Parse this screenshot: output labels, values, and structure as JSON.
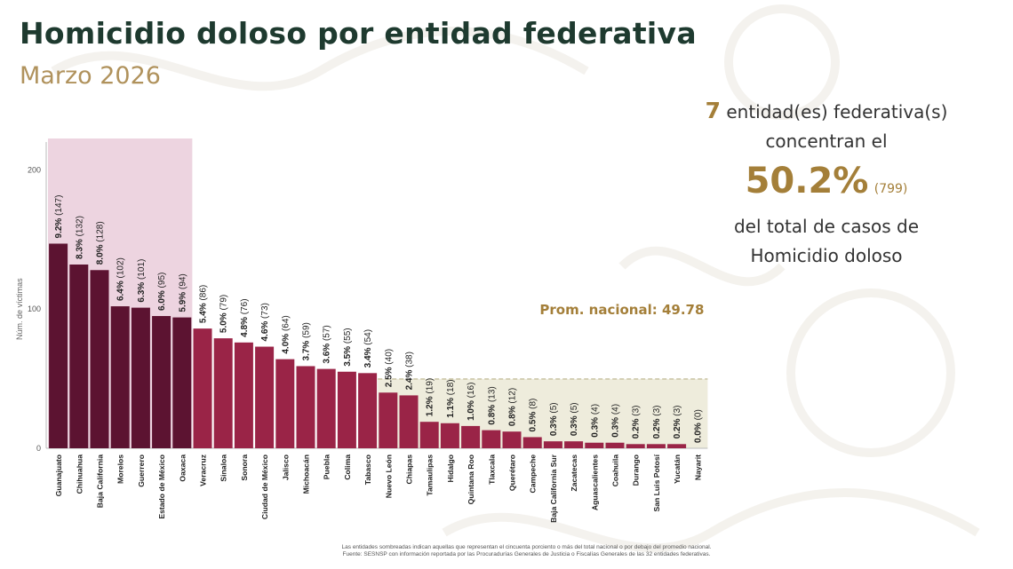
{
  "header": {
    "title": "Homicidio doloso por entidad federativa",
    "subtitle": "Marzo 2026"
  },
  "summary": {
    "count": "7",
    "line1": "entidad(es) federativa(s)",
    "line2": "concentran el",
    "percent": "50.2%",
    "cases": "(799)",
    "line3": "del total de casos de",
    "line4": "Homicidio doloso"
  },
  "average_label": "Prom. nacional: 49.78",
  "footnotes": {
    "line1": "Las entidades sombreadas indican aquellas que representan el cincuenta porciento o más del total nacional o por debajo del promedio nacional.",
    "line2": "Fuente: SESNSP con información reportada por las Procuradurías Generales de Justicia o Fiscalías Generales de las 32 entidades federativas."
  },
  "colors": {
    "top_group": "#5c1331",
    "rest": "#9a2447",
    "top_highlight": "#edd4e0",
    "below_average_highlight": "#eeecdc",
    "title": "#1e3a2f",
    "accent_gold": "#a47f39"
  },
  "chart_data": {
    "type": "bar",
    "title": "Homicidio doloso por entidad federativa",
    "ylabel": "Núm. de víctimas",
    "xlabel": "",
    "ylim": [
      0,
      220
    ],
    "yticks": [
      0,
      100,
      200
    ],
    "average": 49.78,
    "top_group_count": 7,
    "categories": [
      "Guanajuato",
      "Chihuahua",
      "Baja California",
      "Morelos",
      "Guerrero",
      "Estado de México",
      "Oaxaca",
      "Veracruz",
      "Sinaloa",
      "Sonora",
      "Ciudad de México",
      "Jalisco",
      "Michoacán",
      "Puebla",
      "Colima",
      "Tabasco",
      "Nuevo León",
      "Chiapas",
      "Tamaulipas",
      "Hidalgo",
      "Quintana Roo",
      "Tlaxcala",
      "Querétaro",
      "Campeche",
      "Baja California Sur",
      "Zacatecas",
      "Aguascalientes",
      "Coahuila",
      "Durango",
      "San Luis Potosí",
      "Yucatán",
      "Nayarit"
    ],
    "values": [
      147,
      132,
      128,
      102,
      101,
      95,
      94,
      86,
      79,
      76,
      73,
      64,
      59,
      57,
      55,
      54,
      40,
      38,
      19,
      18,
      16,
      13,
      12,
      8,
      5,
      5,
      4,
      4,
      3,
      3,
      3,
      0
    ],
    "percent_labels": [
      "9.2%",
      "8.3%",
      "8.0%",
      "6.4%",
      "6.3%",
      "6.0%",
      "5.9%",
      "5.4%",
      "5.0%",
      "4.8%",
      "4.6%",
      "4.0%",
      "3.7%",
      "3.6%",
      "3.5%",
      "3.4%",
      "2.5%",
      "2.4%",
      "1.2%",
      "1.1%",
      "1.0%",
      "0.8%",
      "0.8%",
      "0.5%",
      "0.3%",
      "0.3%",
      "0.3%",
      "0.3%",
      "0.2%",
      "0.2%",
      "0.2%",
      "0.0%"
    ],
    "grid": false,
    "legend": "none"
  }
}
